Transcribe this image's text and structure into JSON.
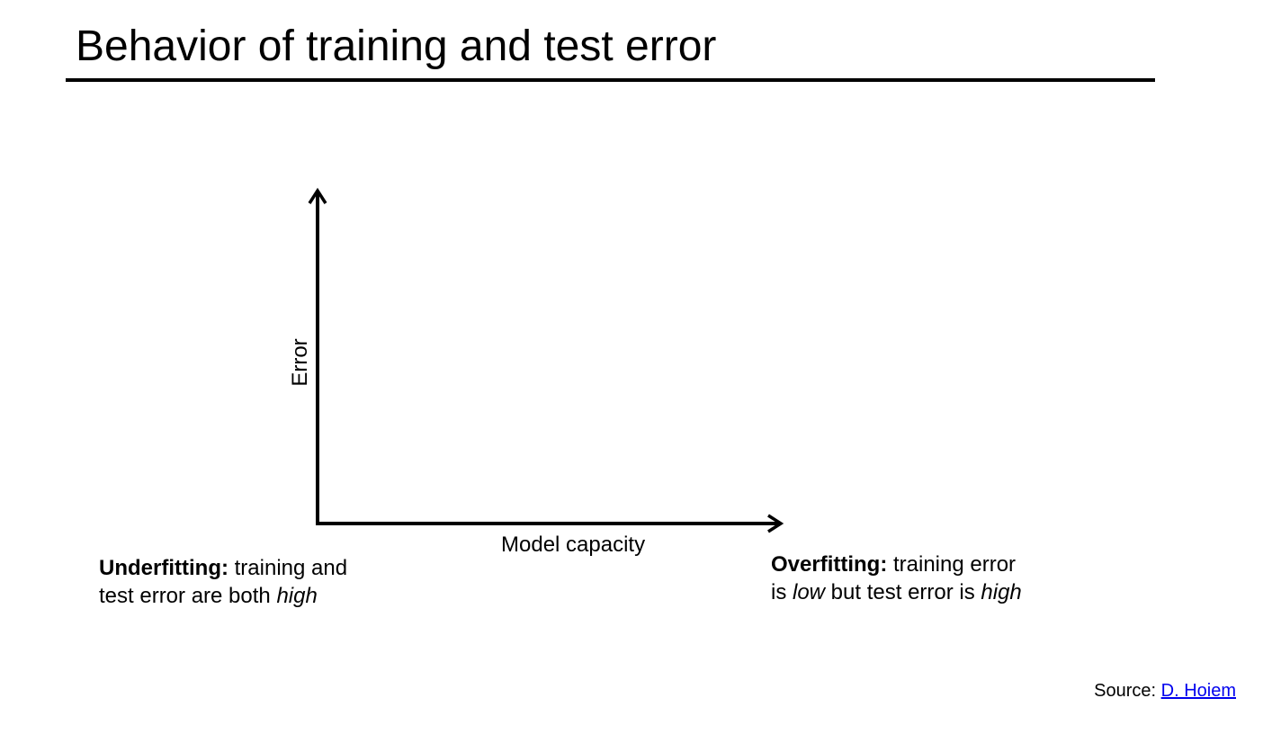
{
  "slide": {
    "title": "Behavior of training and test error"
  },
  "diagram": {
    "y_axis_label": "Error",
    "x_axis_label": "Model capacity"
  },
  "underfitting": {
    "term": "Underfitting:",
    "line1_rest": " training and",
    "line2_text": "test error are both ",
    "line2_emph": "high"
  },
  "overfitting": {
    "term": "Overfitting:",
    "line1_rest": " training error",
    "line2_text_a": "is ",
    "line2_emph_a": "low",
    "line2_text_b": " but test error is ",
    "line2_emph_b": "high"
  },
  "source": {
    "prefix": "Source: ",
    "link_text": "D. Hoiem",
    "link_color": "#0000ee"
  }
}
